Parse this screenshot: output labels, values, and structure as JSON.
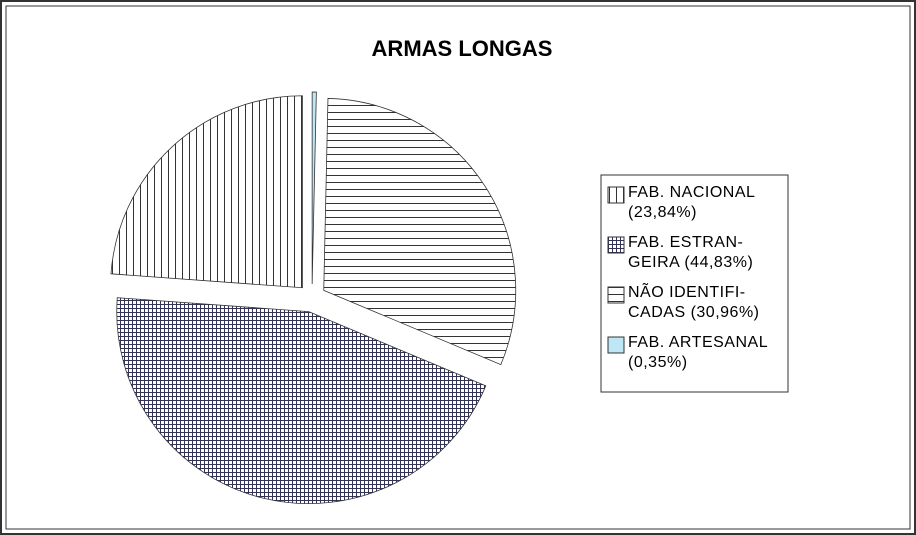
{
  "chart_data": {
    "type": "pie",
    "title": "ARMAS LONGAS",
    "categories": [
      "FAB. NACIONAL\n(23,84%)",
      "FAB. ESTRAN-\nGEIRA (44,83%)",
      "NÃO IDENTIFI-\nCADAS (30,96%)",
      "FAB. ARTESANAL\n(0,35%)"
    ],
    "values": [
      23.84,
      44.83,
      30.96,
      0.35
    ],
    "colors": [
      "#333333",
      "#333366",
      "#333333",
      "#bfe6f5"
    ],
    "patterns": [
      "vertical",
      "grid",
      "horizontal",
      "solid"
    ],
    "legend": "right"
  }
}
